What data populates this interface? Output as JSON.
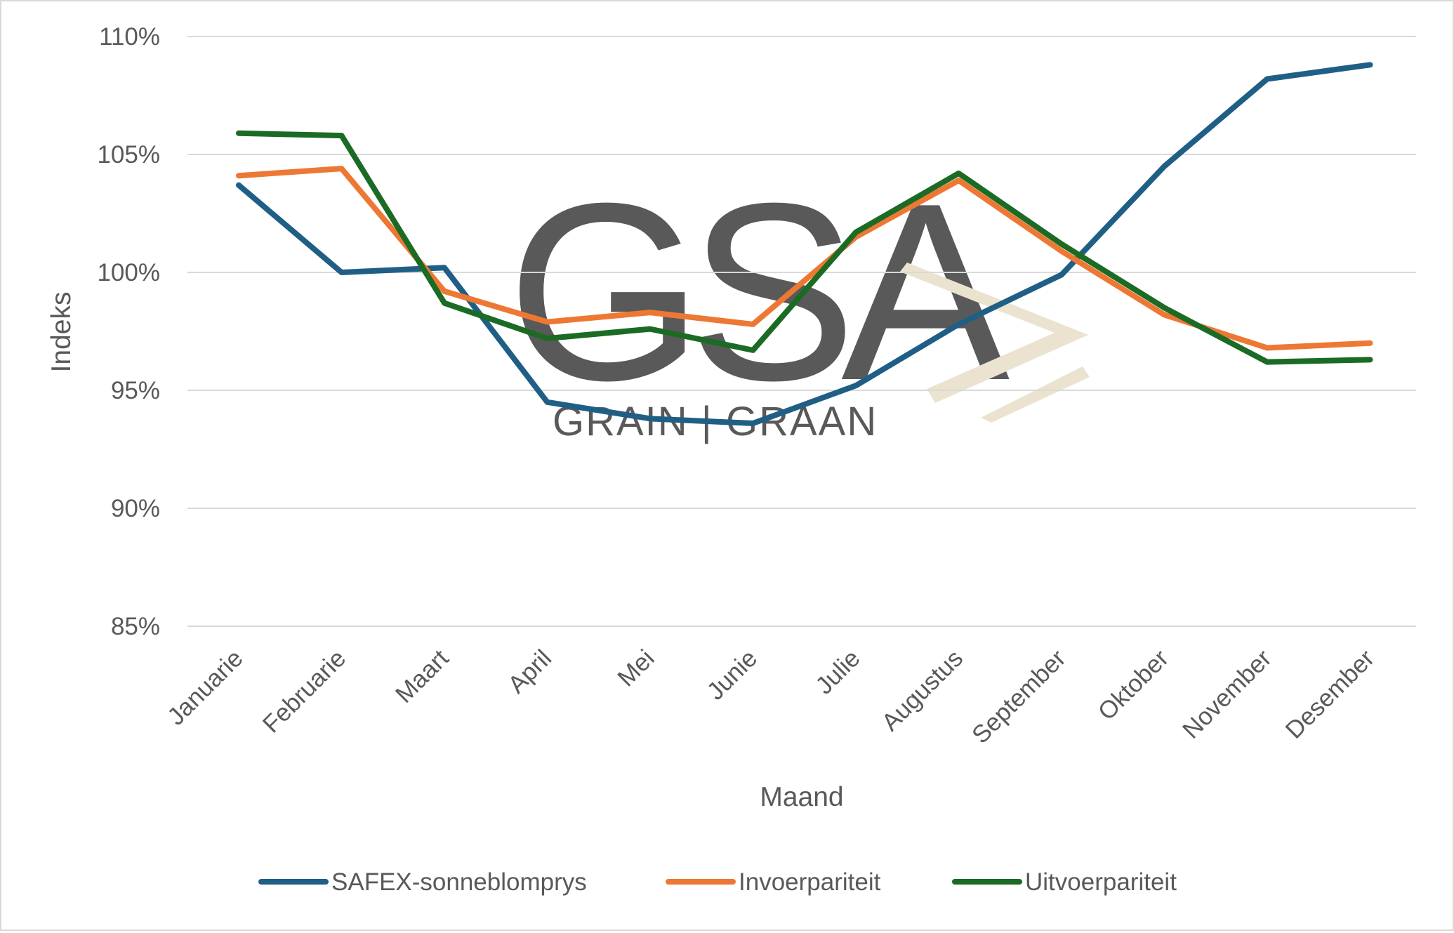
{
  "watermark": {
    "letters": "GSA",
    "subtitle": "GRAIN | GRAAN",
    "colors": {
      "letters": "#c9d3d3",
      "chevron": "#ebe3cf",
      "subtitle": "#dcdcdc"
    }
  },
  "chart_data": {
    "type": "line",
    "title": "",
    "xlabel": "Maand",
    "ylabel": "Indeks",
    "categories": [
      "Januarie",
      "Februarie",
      "Maart",
      "April",
      "Mei",
      "Junie",
      "Julie",
      "Augustus",
      "September",
      "Oktober",
      "November",
      "Desember"
    ],
    "ylim": [
      85,
      110
    ],
    "yticks": [
      85,
      90,
      95,
      100,
      105,
      110
    ],
    "ytick_labels": [
      "85%",
      "90%",
      "95%",
      "100%",
      "105%",
      "110%"
    ],
    "grid": true,
    "legend_position": "bottom",
    "series": [
      {
        "name": "SAFEX-sonneblomprys",
        "color": "#1f5f85",
        "values": [
          103.7,
          100.0,
          100.2,
          94.5,
          93.8,
          93.6,
          95.2,
          97.8,
          99.9,
          104.5,
          108.2,
          108.8
        ]
      },
      {
        "name": "Invoerpariteit",
        "color": "#ed7834",
        "values": [
          104.1,
          104.4,
          99.2,
          97.9,
          98.3,
          97.8,
          101.5,
          103.9,
          100.9,
          98.2,
          96.8,
          97.0
        ]
      },
      {
        "name": "Uitvoerpariteit",
        "color": "#1b6b24",
        "values": [
          105.9,
          105.8,
          98.7,
          97.2,
          97.6,
          96.7,
          101.7,
          104.2,
          101.2,
          98.5,
          96.2,
          96.3
        ]
      }
    ]
  }
}
